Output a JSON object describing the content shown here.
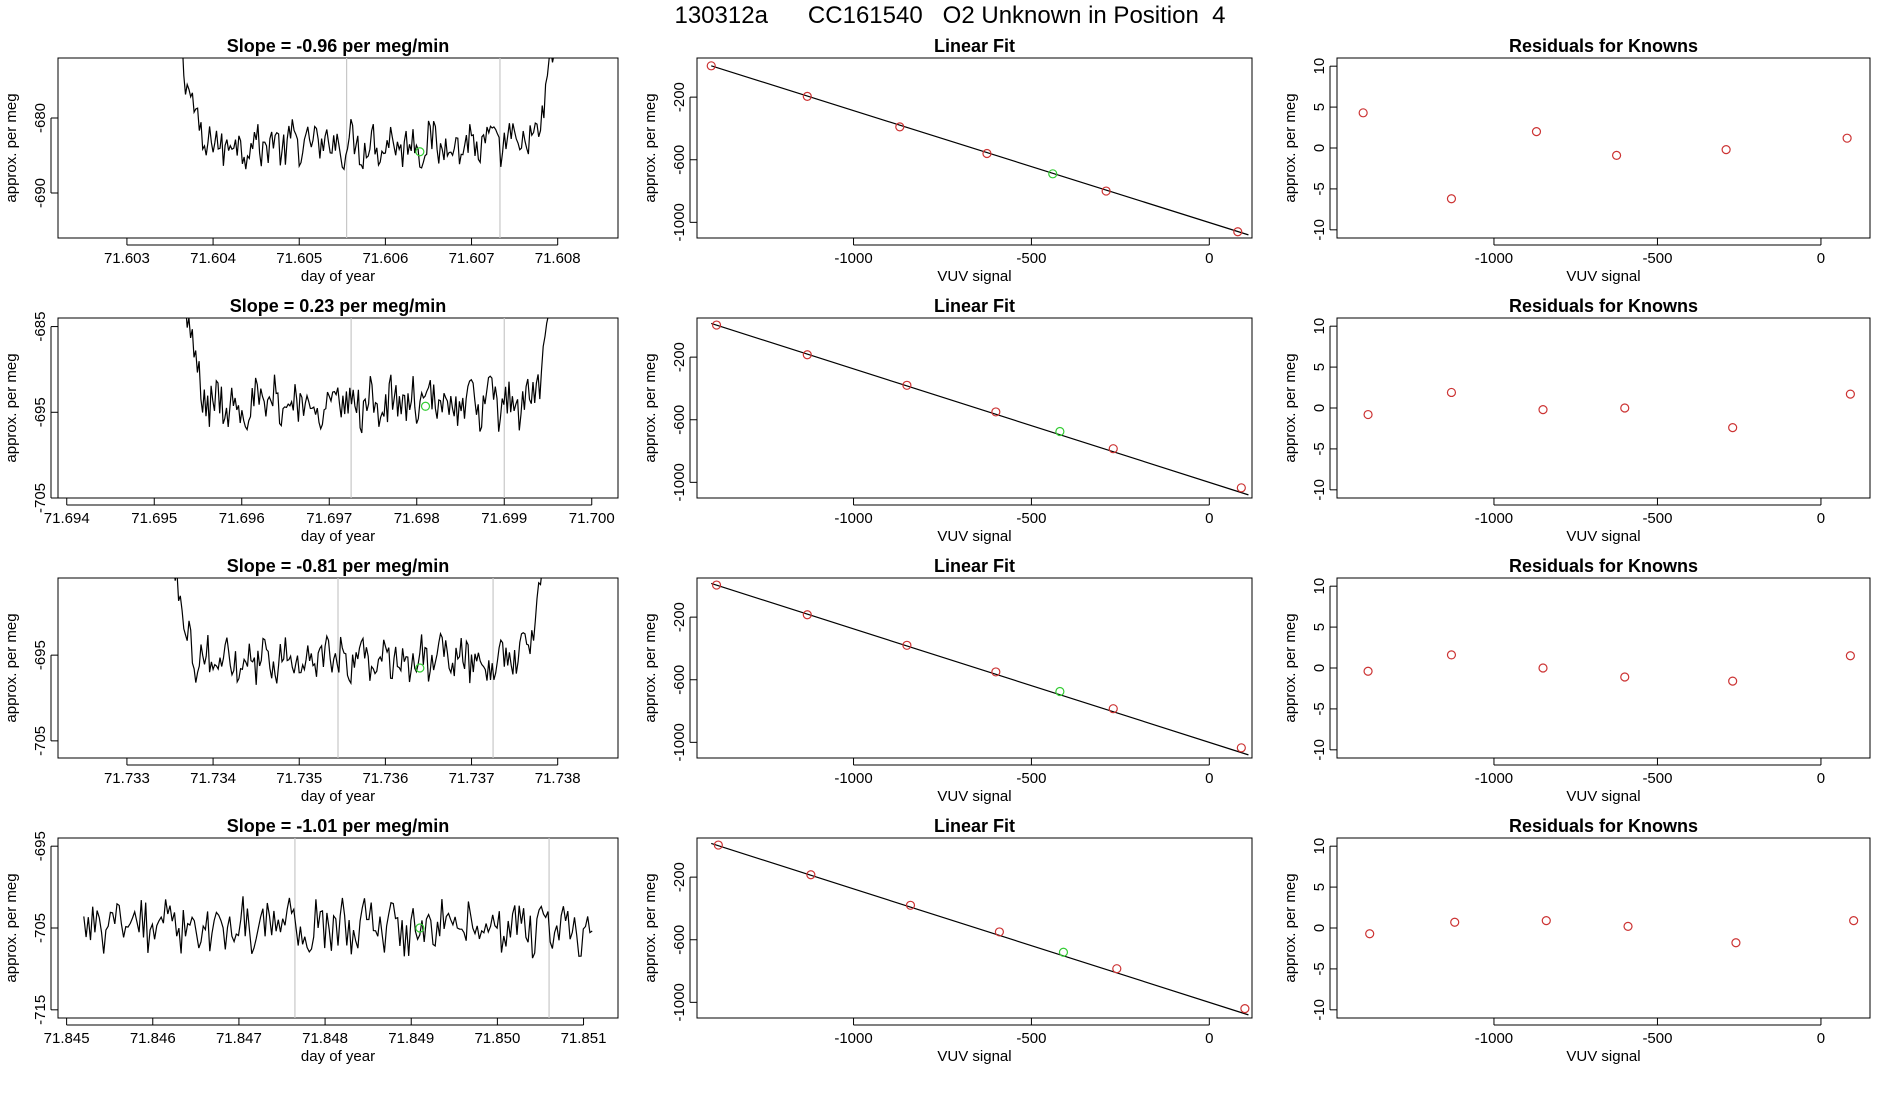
{
  "header": {
    "title": "130312a      CC161540   O2 Unknown in Position  4"
  },
  "colors": {
    "line": "#000000",
    "known_point": "#cc3333",
    "unknown_point": "#33cc33",
    "marker_line": "#c8c8c8"
  },
  "chart_data": [
    {
      "type": "line",
      "row": 0,
      "panel": "time",
      "title": "Slope =  -0.96  per meg/min",
      "xlabel": "day of year",
      "ylabel": "approx. per meg",
      "xlim": [
        71.6022,
        71.6087
      ],
      "ylim": [
        -696,
        -672
      ],
      "xticks": [
        71.603,
        71.604,
        71.605,
        71.606,
        71.607,
        71.608
      ],
      "xtick_labels": [
        "71.603",
        "71.604",
        "71.605",
        "71.606",
        "71.607",
        "71.608"
      ],
      "yticks": [
        -680,
        -690
      ],
      "ytick_labels": [
        "-680",
        "-690"
      ],
      "start": 71.6035,
      "end": 71.6081,
      "base": -683.5,
      "amp": 2.5,
      "edge_rise": 0.00045,
      "marker_lines": [
        71.60555,
        71.60733
      ],
      "unknown_point": {
        "x": 71.6064,
        "y": -684.5
      }
    },
    {
      "type": "scatter",
      "row": 0,
      "panel": "fit",
      "title": "Linear Fit",
      "xlabel": "VUV signal",
      "ylabel": "approx. per meg",
      "xlim": [
        -1440,
        120
      ],
      "ylim": [
        -1100,
        50
      ],
      "xticks": [
        -1000,
        -500,
        0
      ],
      "xtick_labels": [
        "-1000",
        "-500",
        "0"
      ],
      "yticks": [
        -200,
        -600,
        -1000
      ],
      "ytick_labels": [
        "-200",
        "-600",
        "-1000"
      ],
      "fit_line": {
        "x": [
          -1400,
          110
        ],
        "y": [
          0,
          -1080
        ]
      },
      "knowns": {
        "x": [
          -1400,
          -1130,
          -870,
          -625,
          -290,
          80
        ],
        "y": [
          0,
          -195,
          -390,
          -560,
          -800,
          -1060
        ]
      },
      "unknown": {
        "x": -440,
        "y": -690
      }
    },
    {
      "type": "scatter",
      "row": 0,
      "panel": "resid",
      "title": "Residuals for Knowns",
      "xlabel": "VUV signal",
      "ylabel": "approx. per meg",
      "xlim": [
        -1480,
        150
      ],
      "ylim": [
        -11,
        11
      ],
      "xticks": [
        -1000,
        -500,
        0
      ],
      "xtick_labels": [
        "-1000",
        "-500",
        "0"
      ],
      "yticks": [
        10,
        5,
        0,
        -5,
        -10
      ],
      "ytick_labels": [
        "10",
        "5",
        "0",
        "-5",
        "-10"
      ],
      "points": {
        "x": [
          -1400,
          -1130,
          -870,
          -625,
          -290,
          80
        ],
        "y": [
          4.3,
          -6.2,
          2.0,
          -0.9,
          -0.2,
          1.2
        ]
      }
    },
    {
      "type": "line",
      "row": 1,
      "panel": "time",
      "title": "Slope =  0.23  per meg/min",
      "xlabel": "day of year",
      "ylabel": "approx. per meg",
      "xlim": [
        71.6939,
        71.7003
      ],
      "ylim": [
        -705,
        -684
      ],
      "xticks": [
        71.694,
        71.695,
        71.696,
        71.697,
        71.698,
        71.699,
        71.7
      ],
      "xtick_labels": [
        "71.694",
        "71.695",
        "71.696",
        "71.697",
        "71.698",
        "71.699",
        "71.700"
      ],
      "yticks": [
        -685,
        -695,
        -705
      ],
      "ytick_labels": [
        "-685",
        "-695",
        "-705"
      ],
      "start": 71.6952,
      "end": 71.6997,
      "base": -694,
      "amp": 2.4,
      "edge_rise": 0.00045,
      "marker_lines": [
        71.69725,
        71.699
      ],
      "unknown_point": {
        "x": 71.6981,
        "y": -694.3
      }
    },
    {
      "type": "scatter",
      "row": 1,
      "panel": "fit",
      "title": "Linear Fit",
      "xlabel": "VUV signal",
      "ylabel": "approx. per meg",
      "xlim": [
        -1440,
        120
      ],
      "ylim": [
        -1100,
        50
      ],
      "xticks": [
        -1000,
        -500,
        0
      ],
      "xtick_labels": [
        "-1000",
        "-500",
        "0"
      ],
      "yticks": [
        -200,
        -600,
        -1000
      ],
      "ytick_labels": [
        "-200",
        "-600",
        "-1000"
      ],
      "fit_line": {
        "x": [
          -1400,
          110
        ],
        "y": [
          15,
          -1080
        ]
      },
      "knowns": {
        "x": [
          -1385,
          -1130,
          -850,
          -600,
          -270,
          90
        ],
        "y": [
          5,
          -185,
          -380,
          -550,
          -785,
          -1035
        ]
      },
      "unknown": {
        "x": -420,
        "y": -675
      }
    },
    {
      "type": "scatter",
      "row": 1,
      "panel": "resid",
      "title": "Residuals for Knowns",
      "xlabel": "VUV signal",
      "ylabel": "approx. per meg",
      "xlim": [
        -1480,
        150
      ],
      "ylim": [
        -11,
        11
      ],
      "xticks": [
        -1000,
        -500,
        0
      ],
      "xtick_labels": [
        "-1000",
        "-500",
        "0"
      ],
      "yticks": [
        10,
        5,
        0,
        -5,
        -10
      ],
      "ytick_labels": [
        "10",
        "5",
        "0",
        "-5",
        "-10"
      ],
      "points": {
        "x": [
          -1385,
          -1130,
          -850,
          -600,
          -270,
          90
        ],
        "y": [
          -0.8,
          1.9,
          -0.2,
          0.0,
          -2.4,
          1.7
        ]
      }
    },
    {
      "type": "line",
      "row": 2,
      "panel": "time",
      "title": "Slope =  -0.81  per meg/min",
      "xlabel": "day of year",
      "ylabel": "approx. per meg",
      "xlim": [
        71.7322,
        71.7387
      ],
      "ylim": [
        -707,
        -686
      ],
      "xticks": [
        71.733,
        71.734,
        71.735,
        71.736,
        71.737,
        71.738
      ],
      "xtick_labels": [
        "71.733",
        "71.734",
        "71.735",
        "71.736",
        "71.737",
        "71.738"
      ],
      "yticks": [
        -695,
        -705
      ],
      "ytick_labels": [
        "-695",
        "-705"
      ],
      "start": 71.7334,
      "end": 71.738,
      "base": -695.5,
      "amp": 2.2,
      "edge_rise": 0.00045,
      "marker_lines": [
        71.73545,
        71.73725
      ],
      "unknown_point": {
        "x": 71.7364,
        "y": -696.5
      }
    },
    {
      "type": "scatter",
      "row": 2,
      "panel": "fit",
      "title": "Linear Fit",
      "xlabel": "VUV signal",
      "ylabel": "approx. per meg",
      "xlim": [
        -1440,
        120
      ],
      "ylim": [
        -1100,
        50
      ],
      "xticks": [
        -1000,
        -500,
        0
      ],
      "xtick_labels": [
        "-1000",
        "-500",
        "0"
      ],
      "yticks": [
        -200,
        -600,
        -1000
      ],
      "ytick_labels": [
        "-200",
        "-600",
        "-1000"
      ],
      "fit_line": {
        "x": [
          -1400,
          110
        ],
        "y": [
          15,
          -1080
        ]
      },
      "knowns": {
        "x": [
          -1385,
          -1130,
          -850,
          -600,
          -270,
          90
        ],
        "y": [
          5,
          -185,
          -380,
          -550,
          -785,
          -1035
        ]
      },
      "unknown": {
        "x": -420,
        "y": -675
      }
    },
    {
      "type": "scatter",
      "row": 2,
      "panel": "resid",
      "title": "Residuals for Knowns",
      "xlabel": "VUV signal",
      "ylabel": "approx. per meg",
      "xlim": [
        -1480,
        150
      ],
      "ylim": [
        -11,
        11
      ],
      "xticks": [
        -1000,
        -500,
        0
      ],
      "xtick_labels": [
        "-1000",
        "-500",
        "0"
      ],
      "yticks": [
        10,
        5,
        0,
        -5,
        -10
      ],
      "ytick_labels": [
        "10",
        "5",
        "0",
        "-5",
        "-10"
      ],
      "points": {
        "x": [
          -1385,
          -1130,
          -850,
          -600,
          -270,
          90
        ],
        "y": [
          -0.4,
          1.6,
          0.0,
          -1.1,
          -1.6,
          1.5
        ]
      }
    },
    {
      "type": "line",
      "row": 3,
      "panel": "time",
      "title": "Slope =  -1.01  per meg/min",
      "xlabel": "day of year",
      "ylabel": "approx. per meg",
      "xlim": [
        71.8449,
        71.8514
      ],
      "ylim": [
        -716,
        -694
      ],
      "xticks": [
        71.845,
        71.846,
        71.847,
        71.848,
        71.849,
        71.85,
        71.851
      ],
      "xtick_labels": [
        "71.845",
        "71.846",
        "71.847",
        "71.848",
        "71.849",
        "71.850",
        "71.851"
      ],
      "yticks": [
        -695,
        -705,
        -715
      ],
      "ytick_labels": [
        "-695",
        "-705",
        "-715"
      ],
      "start": 71.8452,
      "end": 71.8511,
      "base": -705,
      "amp": 2.8,
      "edge_rise": 0,
      "marker_lines": [
        71.84765,
        71.8506
      ],
      "unknown_point": {
        "x": 71.8491,
        "y": -705
      }
    },
    {
      "type": "scatter",
      "row": 3,
      "panel": "fit",
      "title": "Linear Fit",
      "xlabel": "VUV signal",
      "ylabel": "approx. per meg",
      "xlim": [
        -1440,
        120
      ],
      "ylim": [
        -1100,
        50
      ],
      "xticks": [
        -1000,
        -500,
        0
      ],
      "xtick_labels": [
        "-1000",
        "-500",
        "0"
      ],
      "yticks": [
        -200,
        -600,
        -1000
      ],
      "ytick_labels": [
        "-200",
        "-600",
        "-1000"
      ],
      "fit_line": {
        "x": [
          -1400,
          110
        ],
        "y": [
          15,
          -1080
        ]
      },
      "knowns": {
        "x": [
          -1380,
          -1120,
          -840,
          -590,
          -260,
          100
        ],
        "y": [
          5,
          -185,
          -380,
          -550,
          -785,
          -1040
        ]
      },
      "unknown": {
        "x": -410,
        "y": -680
      }
    },
    {
      "type": "scatter",
      "row": 3,
      "panel": "resid",
      "title": "Residuals for Knowns",
      "xlabel": "VUV signal",
      "ylabel": "approx. per meg",
      "xlim": [
        -1480,
        150
      ],
      "ylim": [
        -11,
        11
      ],
      "xticks": [
        -1000,
        -500,
        0
      ],
      "xtick_labels": [
        "-1000",
        "-500",
        "0"
      ],
      "yticks": [
        10,
        5,
        0,
        -5,
        -10
      ],
      "ytick_labels": [
        "10",
        "5",
        "0",
        "-5",
        "-10"
      ],
      "points": {
        "x": [
          -1380,
          -1120,
          -840,
          -590,
          -260,
          100
        ],
        "y": [
          -0.7,
          0.7,
          0.9,
          0.2,
          -1.8,
          0.9
        ]
      }
    }
  ]
}
